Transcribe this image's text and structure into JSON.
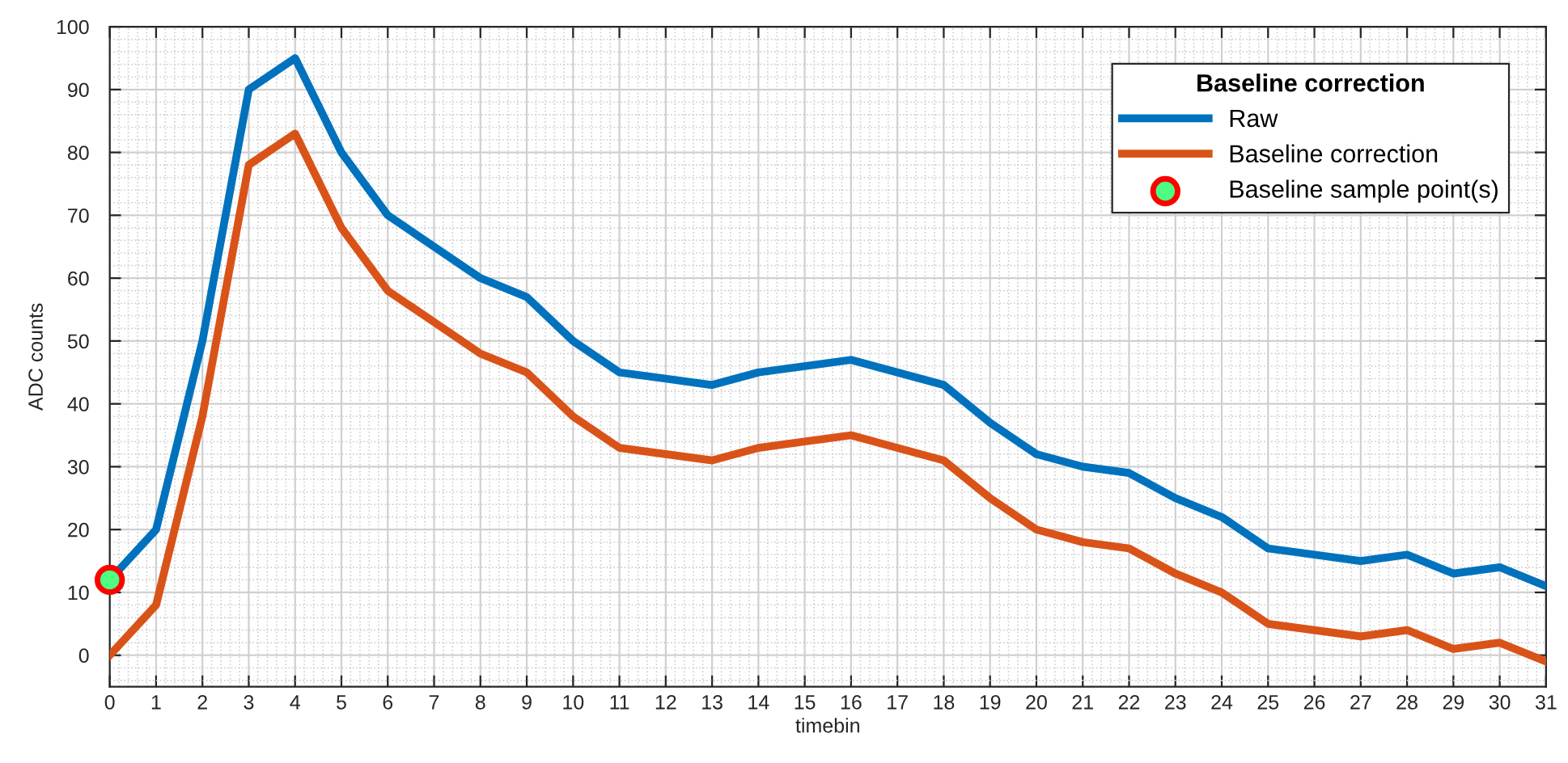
{
  "chart_data": {
    "type": "line",
    "xlabel": "timebin",
    "ylabel": "ADC counts",
    "legend_title": "Baseline correction",
    "x": [
      0,
      1,
      2,
      3,
      4,
      5,
      6,
      7,
      8,
      9,
      10,
      11,
      12,
      13,
      14,
      15,
      16,
      17,
      18,
      19,
      20,
      21,
      22,
      23,
      24,
      25,
      26,
      27,
      28,
      29,
      30,
      31
    ],
    "series": [
      {
        "name": "Raw",
        "color": "#0072bd",
        "values": [
          12,
          20,
          50,
          90,
          95,
          80,
          70,
          65,
          60,
          57,
          50,
          45,
          44,
          43,
          45,
          46,
          47,
          45,
          43,
          37,
          32,
          30,
          29,
          25,
          22,
          17,
          16,
          15,
          16,
          13,
          14,
          11
        ]
      },
      {
        "name": "Baseline correction",
        "color": "#d95319",
        "values": [
          0,
          8,
          38,
          78,
          83,
          68,
          58,
          53,
          48,
          45,
          38,
          33,
          32,
          31,
          33,
          34,
          35,
          33,
          31,
          25,
          20,
          18,
          17,
          13,
          10,
          5,
          4,
          3,
          4,
          1,
          2,
          -1
        ]
      },
      {
        "name": "Baseline sample point(s)",
        "type": "scatter",
        "marker": "circle",
        "color": "#4dff80",
        "x": [
          0
        ],
        "values": [
          12
        ]
      }
    ],
    "xlim": [
      0,
      31
    ],
    "xticks": [
      0,
      1,
      2,
      3,
      4,
      5,
      6,
      7,
      8,
      9,
      10,
      11,
      12,
      13,
      14,
      15,
      16,
      17,
      18,
      19,
      20,
      21,
      22,
      23,
      24,
      25,
      26,
      27,
      28,
      29,
      30,
      31
    ],
    "ylim": [
      -5,
      100
    ],
    "yticks": [
      0,
      10,
      20,
      30,
      40,
      50,
      60,
      70,
      80,
      90,
      100
    ],
    "grid": true,
    "legend": "top right",
    "line_style": "solid"
  }
}
